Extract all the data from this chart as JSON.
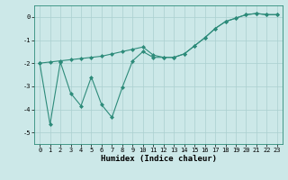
{
  "line1_x": [
    0,
    1,
    2,
    3,
    4,
    5,
    6,
    7,
    8,
    9,
    10,
    11,
    12,
    13,
    14,
    15,
    16,
    17,
    18,
    19,
    20,
    21,
    22,
    23
  ],
  "line1_y": [
    -2.0,
    -1.95,
    -1.9,
    -1.85,
    -1.8,
    -1.75,
    -1.7,
    -1.6,
    -1.5,
    -1.4,
    -1.3,
    -1.65,
    -1.75,
    -1.75,
    -1.6,
    -1.25,
    -0.9,
    -0.5,
    -0.2,
    -0.05,
    0.1,
    0.15,
    0.1,
    0.1
  ],
  "line2_x": [
    0,
    1,
    2,
    3,
    4,
    5,
    6,
    7,
    8,
    9,
    10,
    11,
    12,
    13,
    14,
    15,
    16,
    17,
    18,
    19,
    20,
    21,
    22,
    23
  ],
  "line2_y": [
    -2.0,
    -4.65,
    -1.95,
    -3.3,
    -3.85,
    -2.6,
    -3.8,
    -4.35,
    -3.05,
    -1.9,
    -1.5,
    -1.75,
    -1.75,
    -1.75,
    -1.6,
    -1.25,
    -0.9,
    -0.5,
    -0.2,
    -0.05,
    0.1,
    0.15,
    0.1,
    0.1
  ],
  "line_color": "#2d8b7a",
  "bg_color": "#cce8e8",
  "grid_color": "#aacfcf",
  "xlabel": "Humidex (Indice chaleur)",
  "xlim": [
    -0.5,
    23.5
  ],
  "ylim": [
    -5.5,
    0.5
  ],
  "yticks": [
    0,
    -1,
    -2,
    -3,
    -4,
    -5
  ],
  "xticks": [
    0,
    1,
    2,
    3,
    4,
    5,
    6,
    7,
    8,
    9,
    10,
    11,
    12,
    13,
    14,
    15,
    16,
    17,
    18,
    19,
    20,
    21,
    22,
    23
  ],
  "marker": "D",
  "markersize": 2.0,
  "linewidth": 0.8,
  "tick_fontsize": 5.0,
  "xlabel_fontsize": 6.5
}
